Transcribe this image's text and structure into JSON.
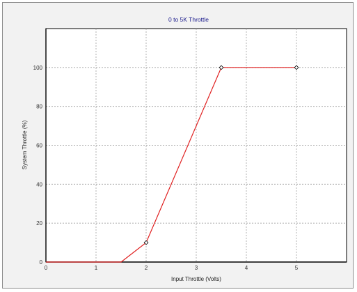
{
  "chart_data": {
    "type": "line",
    "title": "0 to 5K Throttle",
    "xlabel": "Input Throttle (Volts)",
    "ylabel": "System Throttle (%)",
    "xlim": [
      0,
      6
    ],
    "ylim": [
      0,
      120
    ],
    "x_ticks": [
      "0",
      "1",
      "2",
      "3",
      "4",
      "5"
    ],
    "y_ticks": [
      "0",
      "20",
      "40",
      "60",
      "80",
      "100"
    ],
    "grid": true,
    "series": [
      {
        "color": "#e02020",
        "x": [
          0,
          1.5,
          2,
          3.5,
          5
        ],
        "y": [
          0,
          0,
          10,
          100,
          100
        ],
        "markers": [
          2,
          3.5,
          5
        ]
      }
    ],
    "colors": {
      "title": "#1a1a8c",
      "frame": "#f2f2f2",
      "plot_background": "#ffffff",
      "axis": "#000000",
      "grid": "#a0a0a0"
    }
  }
}
